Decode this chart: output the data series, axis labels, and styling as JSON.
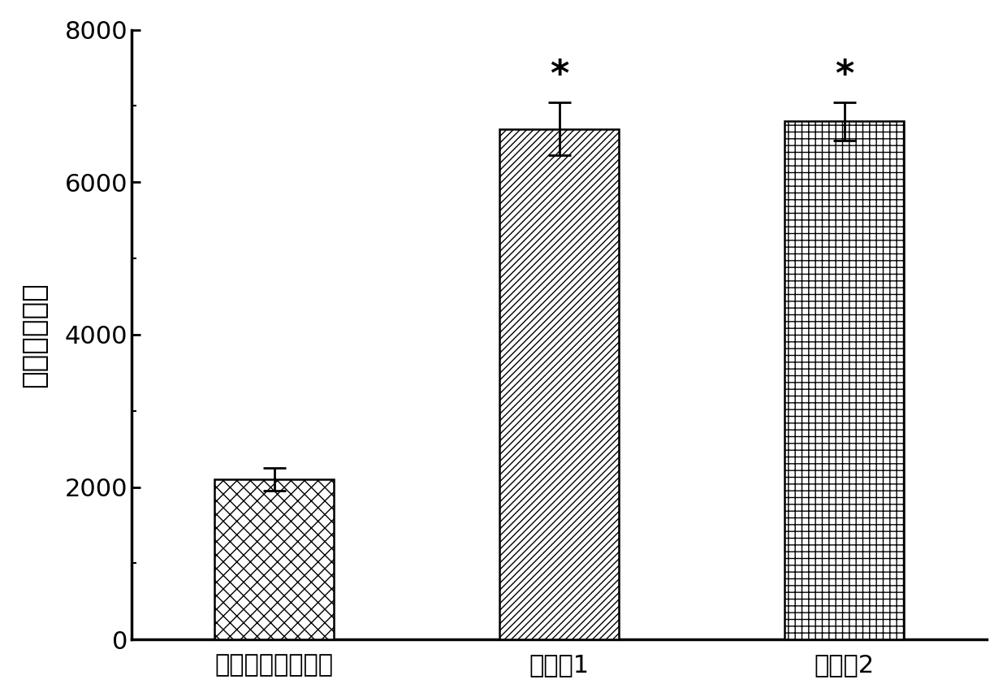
{
  "categories": [
    "二元基因递送系统",
    "实施例1",
    "实施例2"
  ],
  "values": [
    2100,
    6700,
    6800
  ],
  "errors": [
    150,
    350,
    250
  ],
  "ylabel": "平均荧光强度",
  "ylim": [
    0,
    8000
  ],
  "yticks": [
    0,
    2000,
    4000,
    6000,
    8000
  ],
  "bar_width": 0.42,
  "bar_facecolor": "white",
  "bar_edgecolor": "black",
  "bar_linewidth": 1.8,
  "hatch_patterns": [
    "xx",
    "////",
    "++"
  ],
  "significance_bars": [
    1,
    2
  ],
  "significance_symbol": "*",
  "figure_width": 12.4,
  "figure_height": 8.58,
  "dpi": 100,
  "background_color": "white",
  "font_size_ylabel": 26,
  "font_size_xtick": 22,
  "font_size_ytick": 22,
  "font_size_star": 32,
  "error_capsize": 10,
  "error_linewidth": 2.0,
  "spine_linewidth": 2.5,
  "x_positions": [
    0.5,
    1.5,
    2.5
  ],
  "xlim": [
    0.0,
    3.0
  ]
}
